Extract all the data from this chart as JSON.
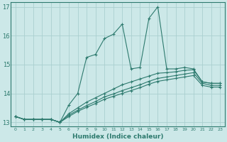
{
  "xlabel": "Humidex (Indice chaleur)",
  "ylabel": "",
  "bg_color": "#cce8e8",
  "line_color": "#2d7a6e",
  "grid_color": "#aacfcf",
  "xlim": [
    -0.5,
    23.5
  ],
  "ylim": [
    12.85,
    17.15
  ],
  "yticks": [
    13,
    14,
    15,
    16,
    17
  ],
  "xticks": [
    0,
    1,
    2,
    3,
    4,
    5,
    6,
    7,
    8,
    9,
    10,
    11,
    12,
    13,
    14,
    15,
    16,
    17,
    18,
    19,
    20,
    21,
    22,
    23
  ],
  "series": [
    [
      13.2,
      13.1,
      13.1,
      13.1,
      13.1,
      13.0,
      13.6,
      14.0,
      15.25,
      15.35,
      15.9,
      16.05,
      16.4,
      14.85,
      14.9,
      16.6,
      17.0,
      14.85,
      14.85,
      14.9,
      14.85,
      14.4,
      14.35,
      14.35
    ],
    [
      13.2,
      13.1,
      13.1,
      13.1,
      13.1,
      13.0,
      13.3,
      13.5,
      13.7,
      13.85,
      14.0,
      14.15,
      14.3,
      14.4,
      14.5,
      14.6,
      14.7,
      14.72,
      14.75,
      14.8,
      14.82,
      14.4,
      14.35,
      14.35
    ],
    [
      13.2,
      13.1,
      13.1,
      13.1,
      13.1,
      13.0,
      13.25,
      13.42,
      13.58,
      13.72,
      13.88,
      13.98,
      14.1,
      14.2,
      14.3,
      14.42,
      14.52,
      14.57,
      14.62,
      14.67,
      14.72,
      14.35,
      14.28,
      14.28
    ],
    [
      13.2,
      13.1,
      13.1,
      13.1,
      13.1,
      13.0,
      13.2,
      13.38,
      13.52,
      13.65,
      13.8,
      13.9,
      14.0,
      14.1,
      14.2,
      14.32,
      14.42,
      14.47,
      14.52,
      14.57,
      14.62,
      14.28,
      14.22,
      14.22
    ]
  ]
}
